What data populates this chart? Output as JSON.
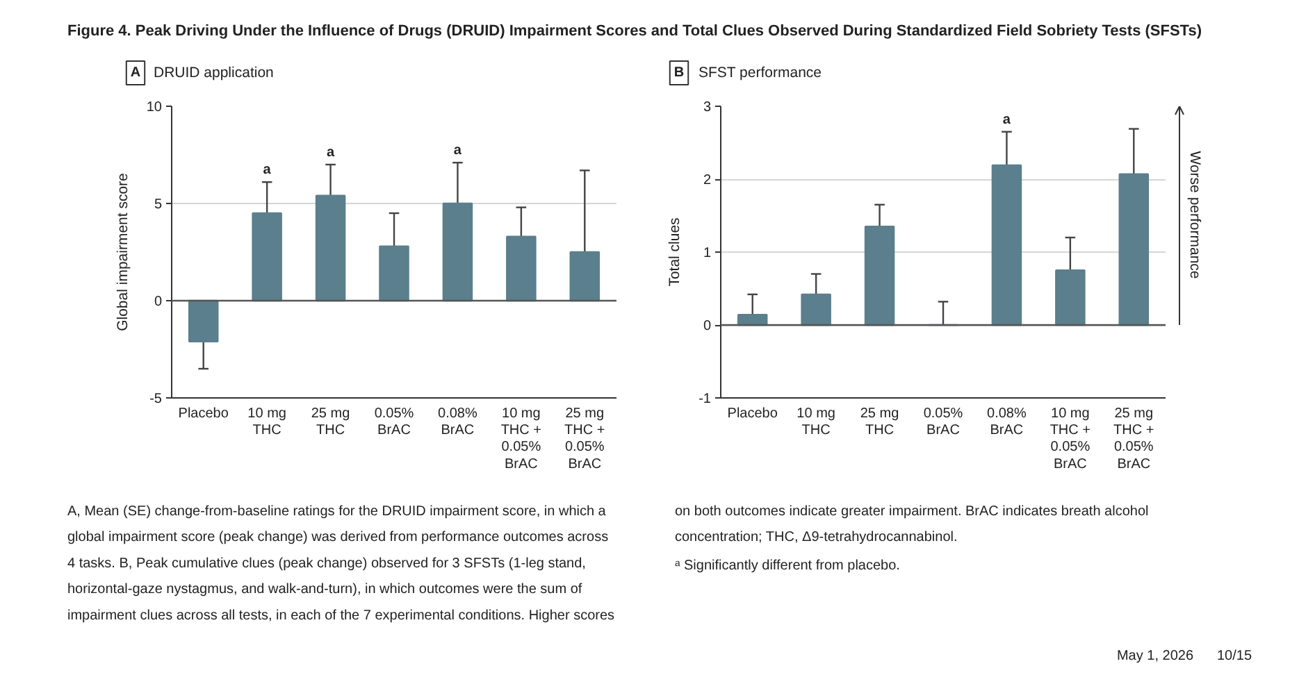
{
  "chart_data": [
    {
      "type": "other",
      "title": "Figure 4. Peak Driving Under the Influence of Drugs (DRUID) Impairment Scores and Total Clues Observed During Standardized Field Sobriety Tests (SFSTs)",
      "annotations": [
        "A, Mean (SE) change-from-baseline ratings for the DRUID impairment score, in which a\nglobal impairment score (peak change) was derived from performance outcomes across\n4 tasks. B, Peak cumulative clues (peak change) observed for 3 SFSTs (1-leg stand,\nhorizontal-gaze nystagmus, and walk-and-turn), in which outcomes were the sum of\nimpairment clues across all tests, in each of the 7 experimental conditions. Higher scores\non both outcomes indicate greater impairment. BrAC indicates breath alcohol\nconcentration; THC, Δ9-tetrahydrocannabinol.",
        "ᵃ Significantly different from placebo.",
        "May 1, 2026",
        "10/15"
      ]
    },
    {
      "type": "bar",
      "title": "DRUID application",
      "ylabel": "Global impairment score",
      "categories": [
        "Placebo",
        "10 mg\nTHC",
        "25 mg\nTHC",
        "0.05%\nBrAC",
        "0.08%\nBrAC",
        "10 mg\nTHC +\n0.05%\nBrAC",
        "25 mg\nTHC +\n0.05%\nBrAC"
      ],
      "series": [
        {
          "color": "#5b7f8c",
          "values": [
            -2.1,
            4.5,
            5.4,
            2.8,
            5.0,
            3.3,
            2.5
          ],
          "errors": [
            [
              -3.5,
              -2.1
            ],
            [
              4.5,
              6.1
            ],
            [
              5.4,
              7.0
            ],
            [
              2.8,
              4.5
            ],
            [
              5.0,
              7.1
            ],
            [
              3.3,
              4.8
            ],
            [
              2.5,
              6.7
            ]
          ]
        }
      ],
      "ylim": [
        -5,
        10
      ],
      "yticks": [
        -5,
        0,
        5,
        10
      ],
      "grid": "y",
      "ref_lines": [
        {
          "axis": "y",
          "value": 0,
          "color": "#555555"
        }
      ],
      "annotations": [
        "A",
        {
          "text": "a",
          "x": "10 mg\nTHC",
          "y": 6.1
        },
        {
          "text": "a",
          "x": "25 mg\nTHC",
          "y": 7.0
        },
        {
          "text": "a",
          "x": "0.08%\nBrAC",
          "y": 7.1
        }
      ]
    },
    {
      "type": "bar",
      "title": "SFST performance",
      "ylabel": "Total clues",
      "categories": [
        "Placebo",
        "10 mg\nTHC",
        "25 mg\nTHC",
        "0.05%\nBrAC",
        "0.08%\nBrAC",
        "10 mg\nTHC +\n0.05%\nBrAC",
        "25 mg\nTHC +\n0.05%\nBrAC"
      ],
      "series": [
        {
          "color": "#5b7f8c",
          "values": [
            0.14,
            0.42,
            1.35,
            0.0,
            2.19,
            0.75,
            2.07
          ],
          "errors": [
            [
              0.14,
              0.42
            ],
            [
              0.42,
              0.7
            ],
            [
              1.35,
              1.65
            ],
            [
              0.0,
              0.32
            ],
            [
              2.19,
              2.65
            ],
            [
              0.75,
              1.2
            ],
            [
              2.07,
              2.69
            ]
          ]
        }
      ],
      "ylim": [
        -1,
        3
      ],
      "yticks": [
        -1,
        0,
        1,
        2,
        3
      ],
      "grid": "y",
      "ref_lines": [
        {
          "axis": "y",
          "value": 0,
          "color": "#555555"
        }
      ],
      "annotations": [
        "B",
        "Worse performance",
        {
          "text": "a",
          "x": "0.08%\nBrAC",
          "y": 2.65
        }
      ]
    }
  ]
}
